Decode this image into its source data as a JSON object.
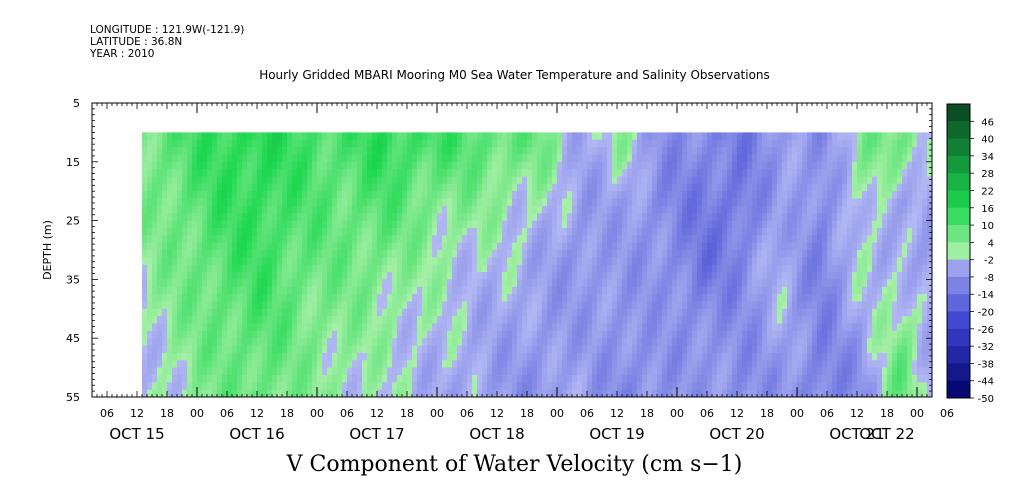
{
  "meta": {
    "longitude_line": "LONGITUDE : 121.9W(-121.9)",
    "latitude_line": "LATITUDE : 36.8N",
    "year_line": "YEAR : 2010"
  },
  "chart_data": {
    "type": "heatmap",
    "title": "Hourly Gridded MBARI Mooring M0 Sea Water Temperature and Salinity Observations",
    "xlabel": "V Component of Water Velocity (cm s−1)",
    "ylabel": "DEPTH (m)",
    "ylim": [
      5,
      55
    ],
    "y_ticks": [
      "5",
      "15",
      "25",
      "35",
      "45",
      "55"
    ],
    "hour_ticks": [
      "06",
      "12",
      "18",
      "00",
      "06",
      "12",
      "18",
      "00",
      "06",
      "12",
      "18",
      "00",
      "06",
      "12",
      "18",
      "00",
      "06",
      "12",
      "18",
      "00",
      "06",
      "12",
      "18",
      "00",
      "06",
      "12",
      "18",
      "00",
      "06"
    ],
    "day_labels": [
      "OCT 15",
      "OCT 16",
      "OCT 17",
      "OCT 18",
      "OCT 19",
      "OCT 20",
      "OCT 21",
      "OCT 22"
    ],
    "data_time_range_hours": [
      13,
      171
    ],
    "data_depth_range_m": [
      10,
      55
    ],
    "colorbar_levels": [
      "46",
      "40",
      "34",
      "28",
      "22",
      "16",
      "10",
      "4",
      "-2",
      "-8",
      "-14",
      "-20",
      "-26",
      "-32",
      "-38",
      "-44",
      "-50"
    ],
    "colorbar_min": -50,
    "colorbar_max": 52,
    "colormap": {
      "negative_deep": "#000066",
      "negative_mid": "#3b44d0",
      "negative_light": "#b4b9f4",
      "positive_light": "#a8f0a8",
      "positive_mid": "#1ed850",
      "positive_deep": "#0a4a22"
    },
    "field_samples": {
      "description": "approximate V velocity (cm/s) by time (hours from OCT 15 00:00) at depths 12, 22, 32, 42, 52 m",
      "times": [
        13,
        21,
        29,
        37,
        45,
        53,
        61,
        69,
        77,
        85,
        93,
        101,
        109,
        117,
        125,
        133,
        141,
        149,
        157,
        165,
        171
      ],
      "depths": [
        12,
        22,
        32,
        42,
        52
      ],
      "values": [
        [
          6,
          10,
          14,
          15,
          12,
          10,
          14,
          12,
          10,
          8,
          6,
          -4,
          2,
          -8,
          -10,
          -12,
          -6,
          -8,
          4,
          6,
          2
        ],
        [
          4,
          8,
          12,
          14,
          10,
          8,
          10,
          6,
          4,
          2,
          0,
          -6,
          -4,
          -10,
          -12,
          -14,
          -4,
          -10,
          2,
          -6,
          -4
        ],
        [
          2,
          6,
          10,
          12,
          8,
          6,
          6,
          2,
          0,
          -2,
          -4,
          -8,
          -6,
          -8,
          -14,
          -10,
          -2,
          -12,
          0,
          -2,
          -8
        ],
        [
          0,
          4,
          8,
          10,
          6,
          4,
          2,
          0,
          -2,
          -4,
          -6,
          -6,
          -8,
          -6,
          -10,
          -8,
          -4,
          -10,
          -4,
          4,
          -2
        ],
        [
          -2,
          2,
          6,
          8,
          4,
          2,
          0,
          -2,
          -4,
          -6,
          -8,
          -4,
          -10,
          -8,
          -6,
          -10,
          -6,
          -12,
          -8,
          8,
          -4
        ]
      ]
    }
  }
}
